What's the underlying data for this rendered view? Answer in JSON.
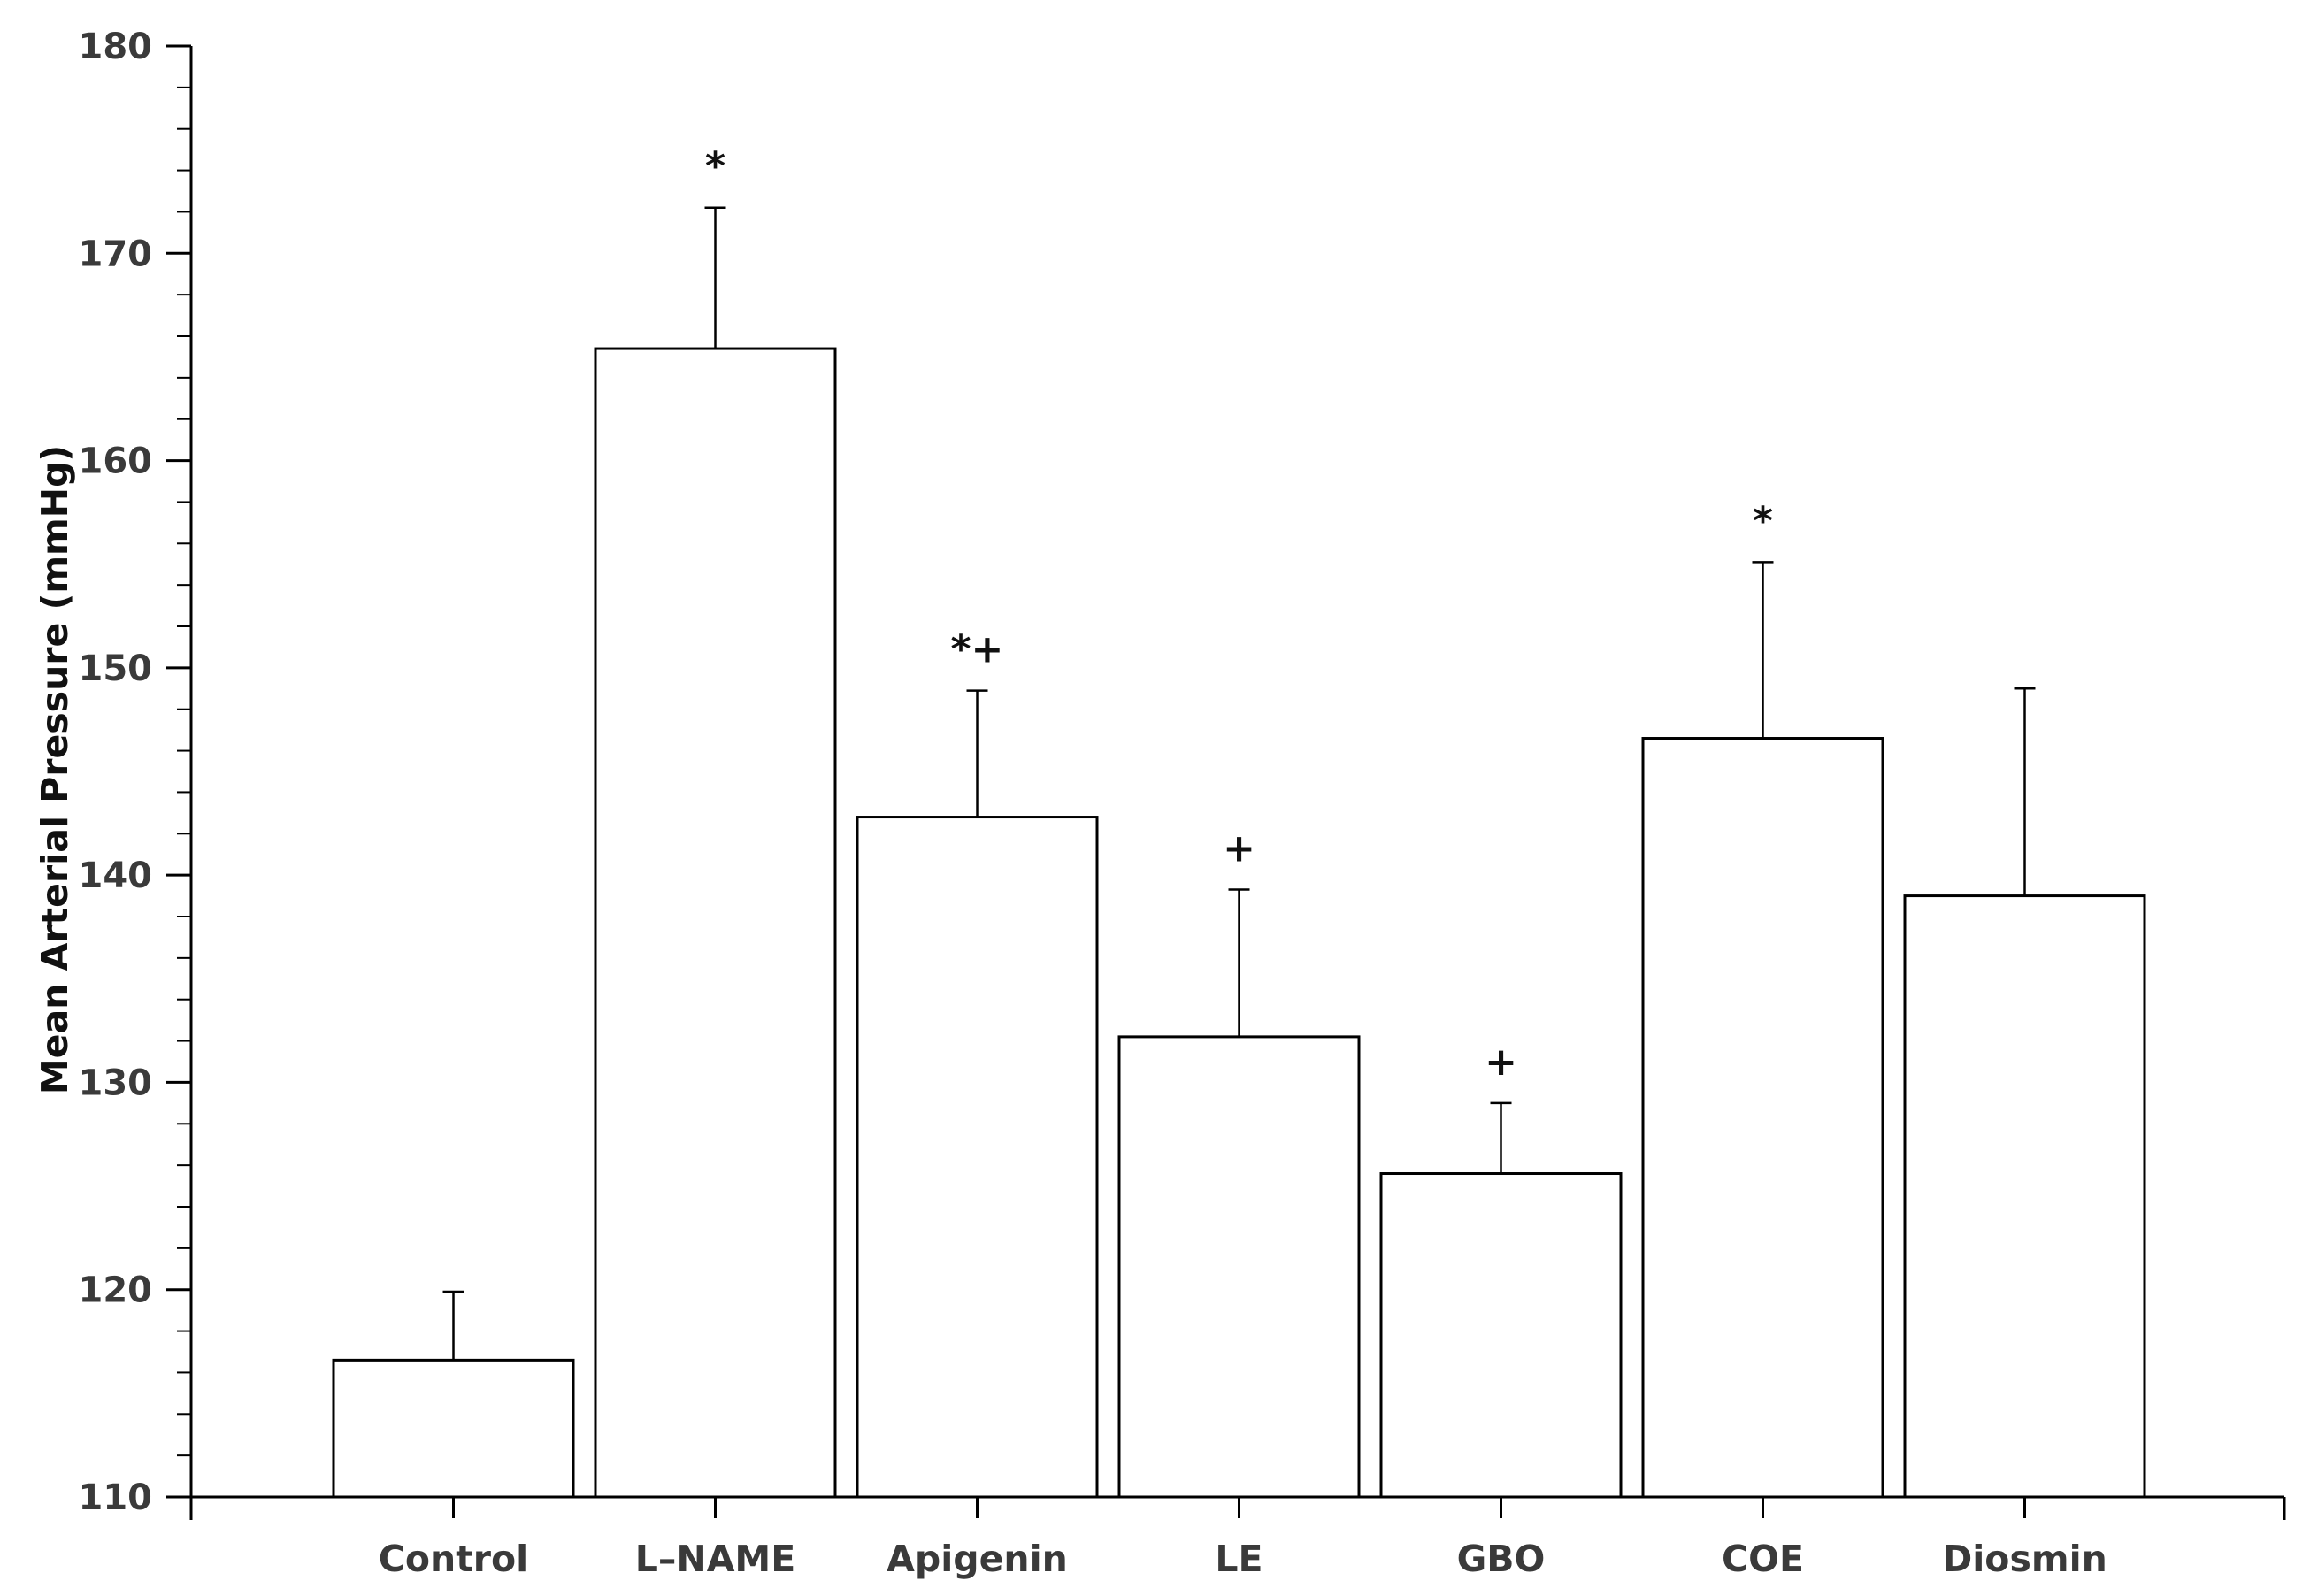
{
  "colors": {
    "bar_fill": "#ffffff",
    "bar_stroke": "#000000",
    "axis": "#000000",
    "text": "#3a3a3a"
  },
  "chart_data": {
    "type": "bar",
    "title": "",
    "xlabel": "",
    "ylabel": "Mean Arterial Pressure (mmHg)",
    "ylim": [
      110,
      180
    ],
    "yticks": [
      110,
      120,
      130,
      140,
      150,
      160,
      170,
      180
    ],
    "ytick_labels": [
      "110",
      "120",
      "130",
      "140",
      "150",
      "160",
      "170",
      "180"
    ],
    "y_minor_step": 2,
    "grid": false,
    "legend": "none",
    "categories": [
      "Control",
      "L–NAME",
      "Apigenin",
      "LE",
      "GBO",
      "COE",
      "Diosmin"
    ],
    "values": [
      116.6,
      165.4,
      142.8,
      132.2,
      125.6,
      146.6,
      139.0
    ],
    "error_upper": [
      3.3,
      6.8,
      6.1,
      7.1,
      3.4,
      8.5,
      10.0
    ],
    "significance_markers": [
      "",
      "*",
      "*+",
      "+",
      "+",
      "*",
      ""
    ]
  }
}
